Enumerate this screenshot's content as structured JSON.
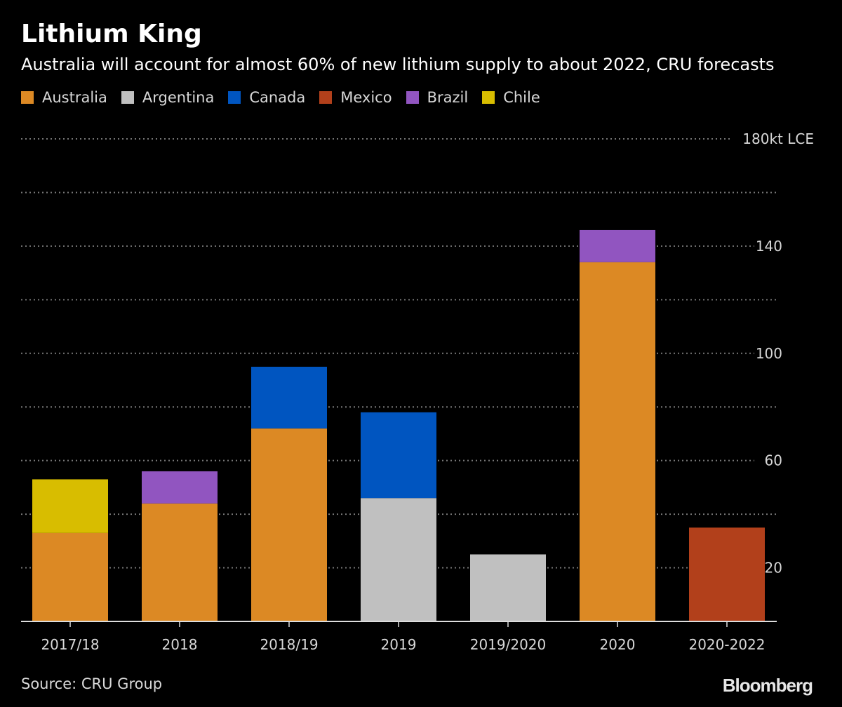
{
  "title": "Lithium King",
  "subtitle": "Australia will account for almost 60% of new lithium supply to about 2022, CRU forecasts",
  "source": "Source: CRU Group",
  "brand": "Bloomberg",
  "chart_data": {
    "type": "bar",
    "stacked": true,
    "categories": [
      "2017/18",
      "2018",
      "2018/19",
      "2019",
      "2019/2020",
      "2020",
      "2020-2022"
    ],
    "series": [
      {
        "name": "Australia",
        "color": "#dc8924",
        "values": [
          33,
          44,
          72,
          0,
          0,
          134,
          0
        ]
      },
      {
        "name": "Argentina",
        "color": "#c0c0c0",
        "values": [
          0,
          0,
          0,
          46,
          25,
          0,
          0
        ]
      },
      {
        "name": "Canada",
        "color": "#0055c0",
        "values": [
          0,
          0,
          23,
          32,
          0,
          0,
          0
        ]
      },
      {
        "name": "Mexico",
        "color": "#b2401b",
        "values": [
          0,
          0,
          0,
          0,
          0,
          0,
          35
        ]
      },
      {
        "name": "Brazil",
        "color": "#9155c0",
        "values": [
          0,
          12,
          0,
          0,
          0,
          12,
          0
        ]
      },
      {
        "name": "Chile",
        "color": "#d8bd00",
        "values": [
          20,
          0,
          0,
          0,
          0,
          0,
          0
        ]
      }
    ],
    "yticks": [
      {
        "value": 180,
        "label": "180kt LCE"
      },
      {
        "value": 140,
        "label": "140"
      },
      {
        "value": 100,
        "label": "100"
      },
      {
        "value": 60,
        "label": "60"
      },
      {
        "value": 20,
        "label": "20"
      }
    ],
    "ylim": [
      0,
      180
    ],
    "grid_step": 20,
    "grid": true,
    "legend_position": "top-left"
  }
}
